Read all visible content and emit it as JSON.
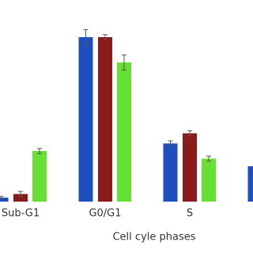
{
  "chart_data": {
    "type": "bar",
    "x_label": "Cell cyle phases",
    "categories": [
      "Sub-G1",
      "G0/G1",
      "S",
      null
    ],
    "series": [
      {
        "color": "#1f4fbf",
        "values": [
          1.6,
          65,
          23,
          14
        ],
        "errors": [
          0.5,
          3,
          1,
          null
        ]
      },
      {
        "color": "#8b1a1a",
        "values": [
          3,
          65,
          27,
          null
        ],
        "errors": [
          1,
          1,
          1,
          null
        ]
      },
      {
        "color": "#66e033",
        "values": [
          20,
          55,
          17,
          null
        ],
        "errors": [
          1,
          3,
          1,
          null
        ]
      }
    ],
    "ylim": [
      0,
      80
    ]
  }
}
